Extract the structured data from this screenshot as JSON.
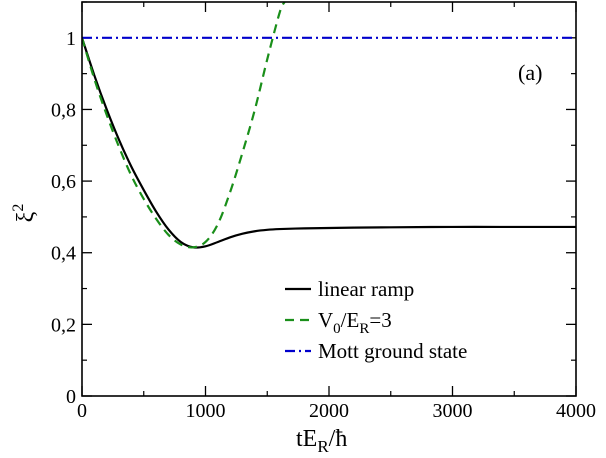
{
  "chart_data": {
    "type": "line",
    "annotation": "(a)",
    "xlabel": {
      "main": "tE",
      "sub": "R",
      "tail": "/ħ"
    },
    "ylabel": {
      "main": "ξ",
      "sup": "2"
    },
    "xlim": [
      0,
      4000
    ],
    "ylim": [
      0,
      1.1
    ],
    "x_ticks": [
      0,
      1000,
      2000,
      3000,
      4000
    ],
    "x_tick_labels": [
      "0",
      "1000",
      "2000",
      "3000",
      "4000"
    ],
    "y_ticks": [
      0,
      0.2,
      0.4,
      0.6,
      0.8,
      1.0
    ],
    "y_tick_labels": [
      "0",
      "0,2",
      "0,4",
      "0,6",
      "0,8",
      "1"
    ],
    "series": [
      {
        "name": "linear ramp",
        "style": "solid",
        "color": "#000000",
        "x": [
          0,
          100,
          200,
          300,
          400,
          500,
          600,
          700,
          800,
          900,
          1000,
          1100,
          1200,
          1300,
          1400,
          1500,
          1600,
          1800,
          2000,
          2200,
          2500,
          3000,
          3500,
          4000
        ],
        "y": [
          1.0,
          0.895,
          0.8,
          0.715,
          0.64,
          0.575,
          0.515,
          0.465,
          0.43,
          0.415,
          0.418,
          0.43,
          0.443,
          0.453,
          0.46,
          0.464,
          0.466,
          0.468,
          0.469,
          0.47,
          0.471,
          0.472,
          0.472,
          0.472
        ]
      },
      {
        "name": "V0/ER=3",
        "style": "dashed",
        "color": "#1a8f1a",
        "x": [
          0,
          100,
          200,
          300,
          400,
          500,
          600,
          700,
          800,
          900,
          1000,
          1100,
          1200,
          1300,
          1400,
          1500,
          1600,
          1640
        ],
        "y": [
          1.0,
          0.885,
          0.785,
          0.695,
          0.615,
          0.55,
          0.495,
          0.45,
          0.423,
          0.415,
          0.43,
          0.48,
          0.57,
          0.68,
          0.8,
          0.94,
          1.07,
          1.1
        ]
      },
      {
        "name": "Mott ground state",
        "style": "dashdot",
        "color": "#0000cc",
        "x": [
          0,
          4000
        ],
        "y": [
          1.0,
          1.0
        ]
      }
    ],
    "legend": {
      "position": "bottom-right",
      "entries": [
        {
          "text": "linear ramp"
        },
        {
          "main": "V",
          "sub1": "0",
          "mid": "/E",
          "sub2": "R",
          "tail": "=3"
        },
        {
          "text": "Mott ground state"
        }
      ]
    }
  }
}
